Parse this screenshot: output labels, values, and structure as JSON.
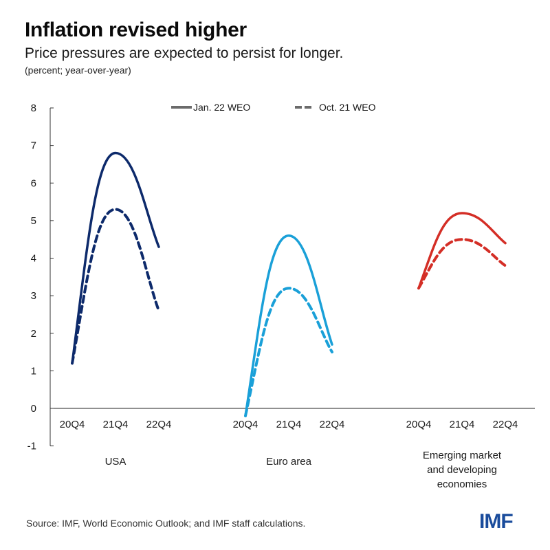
{
  "header": {
    "title": "Inflation revised higher",
    "subtitle": "Price pressures are expected to persist for longer.",
    "units": "(percent; year-over-year)"
  },
  "footer": {
    "source": "Source: IMF, World Economic Outlook; and IMF staff calculations.",
    "logo": "IMF"
  },
  "chart_data": {
    "type": "line",
    "title": "Inflation revised higher",
    "subtitle": "Price pressures are expected to persist for longer.",
    "ylabel": "(percent; year-over-year)",
    "xlabel": "",
    "ylim": [
      -1,
      8
    ],
    "yticks": [
      -1,
      0,
      1,
      2,
      3,
      4,
      5,
      6,
      7,
      8
    ],
    "yticks_labels": [
      "-1",
      "0",
      "1",
      "2",
      "3",
      "4",
      "5",
      "6",
      "7",
      "8"
    ],
    "grid": false,
    "legend": {
      "placement": "top-center",
      "entries": [
        {
          "label": "Jan. 22 WEO",
          "style": "solid",
          "color": "#6b6b6b"
        },
        {
          "label": "Oct. 21 WEO",
          "style": "dashed",
          "color": "#6b6b6b"
        }
      ]
    },
    "categories": [
      "20Q4",
      "21Q4",
      "22Q4"
    ],
    "groups": [
      {
        "name": "USA",
        "label_lines": [
          "USA"
        ],
        "color": "#0d2a6b",
        "series": [
          {
            "name": "Jan. 22 WEO",
            "style": "solid",
            "values": [
              1.2,
              6.8,
              4.3
            ]
          },
          {
            "name": "Oct. 21 WEO",
            "style": "dashed",
            "values": [
              1.2,
              5.3,
              2.6
            ]
          }
        ]
      },
      {
        "name": "Euro area",
        "label_lines": [
          "Euro area"
        ],
        "color": "#1aa0d8",
        "series": [
          {
            "name": "Jan. 22 WEO",
            "style": "solid",
            "values": [
              -0.2,
              4.6,
              1.7
            ]
          },
          {
            "name": "Oct. 21 WEO",
            "style": "dashed",
            "values": [
              -0.2,
              3.2,
              1.5
            ]
          }
        ]
      },
      {
        "name": "Emerging market and developing economies",
        "label_lines": [
          "Emerging market",
          "and developing",
          "economies"
        ],
        "color": "#d42e26",
        "series": [
          {
            "name": "Jan. 22 WEO",
            "style": "solid",
            "values": [
              3.2,
              5.2,
              4.4
            ]
          },
          {
            "name": "Oct. 21 WEO",
            "style": "dashed",
            "values": [
              3.2,
              4.5,
              3.8
            ]
          }
        ]
      }
    ]
  }
}
